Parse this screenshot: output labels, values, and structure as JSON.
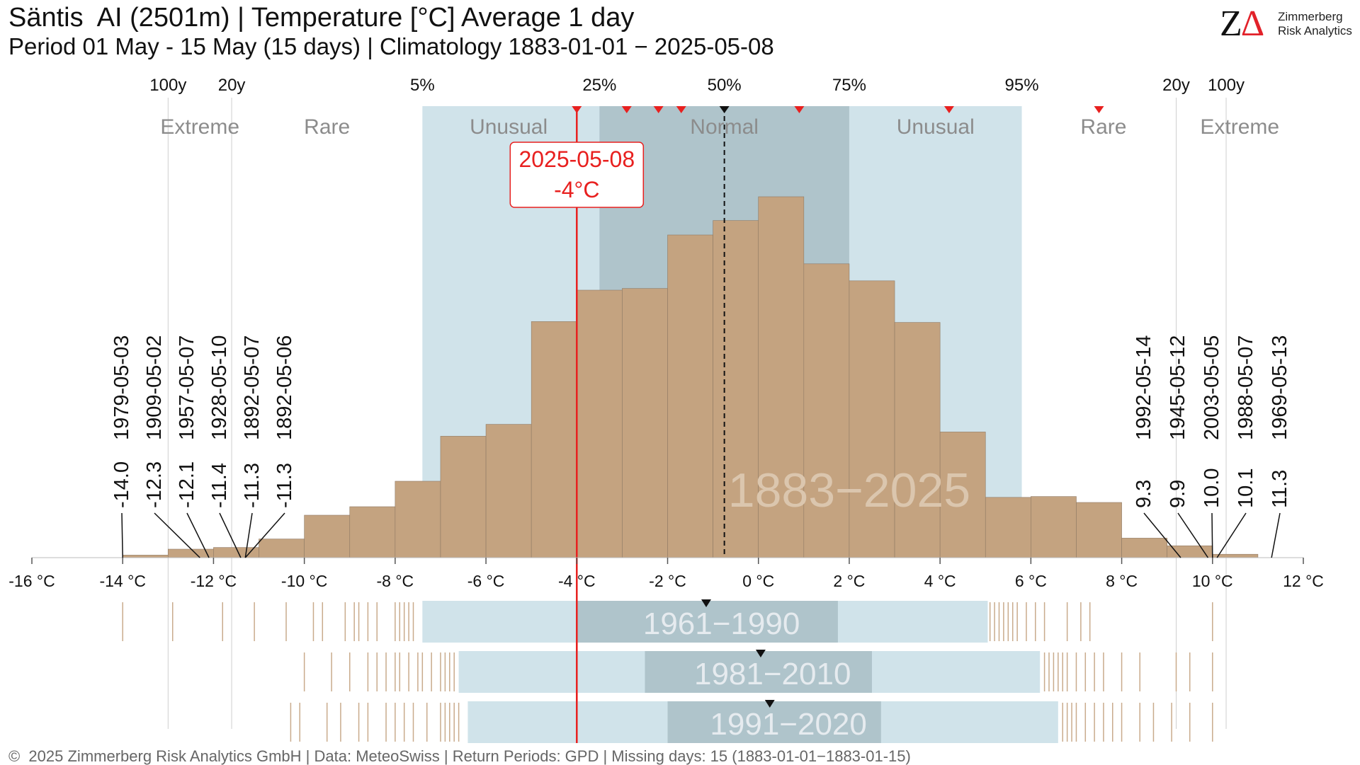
{
  "header": {
    "title": "Säntis  AI (2501m) | Temperature [°C] Average 1 day",
    "subtitle": "Period 01 May - 15 May (15 days) | Climatology 1883-01-01 − 2025-05-08"
  },
  "logo": {
    "symbol_z": "Z",
    "symbol_delta": "Δ",
    "line1": "Zimmerberg",
    "line2": "Risk Analytics"
  },
  "footer": "©  2025 Zimmerberg Risk Analytics GmbH | Data: MeteoSwiss | Return Periods: GPD | Missing days: 15 (1883-01-01−1883-01-15)",
  "colors": {
    "histogram": "#c4a380",
    "unusual_band": "#d0e3ea",
    "normal_band": "#afc4cb",
    "current": "#e8201f",
    "rug": "#c9ab8c",
    "category_text": "#8c8c8c",
    "period_text": "#e6ebef"
  },
  "chart_data": {
    "type": "bar",
    "xlim": [
      -16,
      12
    ],
    "x_unit": "°C",
    "x_ticks": [
      -16,
      -14,
      -12,
      -10,
      -8,
      -6,
      -4,
      -2,
      0,
      2,
      4,
      6,
      8,
      10,
      12
    ],
    "x_tick_labels": [
      "-16 °C",
      "-14 °C",
      "-12 °C",
      "-10 °C",
      "-8 °C",
      "-6 °C",
      "-4 °C",
      "-2 °C",
      "0 °C",
      "2 °C",
      "4 °C",
      "6 °C",
      "8 °C",
      "10 °C",
      "12 °C"
    ],
    "histogram": {
      "period_label": "1883−2025",
      "bins": [
        {
          "from": -14.0,
          "to": -13.0,
          "count": 3
        },
        {
          "from": -13.0,
          "to": -12.0,
          "count": 10
        },
        {
          "from": -12.0,
          "to": -11.0,
          "count": 12
        },
        {
          "from": -11.0,
          "to": -10.0,
          "count": 22
        },
        {
          "from": -10.0,
          "to": -9.0,
          "count": 50
        },
        {
          "from": -9.0,
          "to": -8.0,
          "count": 60
        },
        {
          "from": -8.0,
          "to": -7.0,
          "count": 90
        },
        {
          "from": -7.0,
          "to": -6.0,
          "count": 143
        },
        {
          "from": -6.0,
          "to": -5.0,
          "count": 157
        },
        {
          "from": -5.0,
          "to": -4.0,
          "count": 278
        },
        {
          "from": -4.0,
          "to": -3.0,
          "count": 315
        },
        {
          "from": -3.0,
          "to": -2.0,
          "count": 317
        },
        {
          "from": -2.0,
          "to": -1.0,
          "count": 380
        },
        {
          "from": -1.0,
          "to": 0.0,
          "count": 397
        },
        {
          "from": 0.0,
          "to": 1.0,
          "count": 425
        },
        {
          "from": 1.0,
          "to": 2.0,
          "count": 346
        },
        {
          "from": 2.0,
          "to": 3.0,
          "count": 326
        },
        {
          "from": 3.0,
          "to": 4.0,
          "count": 277
        },
        {
          "from": 4.0,
          "to": 5.0,
          "count": 148
        },
        {
          "from": 5.0,
          "to": 6.0,
          "count": 71
        },
        {
          "from": 6.0,
          "to": 7.0,
          "count": 72
        },
        {
          "from": 7.0,
          "to": 8.0,
          "count": 65
        },
        {
          "from": 8.0,
          "to": 9.0,
          "count": 23
        },
        {
          "from": 9.0,
          "to": 10.0,
          "count": 14
        },
        {
          "from": 10.0,
          "to": 11.0,
          "count": 4
        }
      ]
    },
    "percentiles": [
      {
        "label": "5%",
        "value": -7.4
      },
      {
        "label": "25%",
        "value": -3.5
      },
      {
        "label": "50%",
        "value": -0.75
      },
      {
        "label": "75%",
        "value": 2.0
      },
      {
        "label": "95%",
        "value": 5.8
      }
    ],
    "return_periods": [
      {
        "label": "100y",
        "value": -13.0
      },
      {
        "label": "20y",
        "value": -11.6
      },
      {
        "label": "20y",
        "value": 9.2
      },
      {
        "label": "100y",
        "value": 10.3
      }
    ],
    "categories": [
      {
        "label": "Extreme",
        "center": -12.3
      },
      {
        "label": "Rare",
        "center": -9.5
      },
      {
        "label": "Unusual",
        "center": -5.5
      },
      {
        "label": "Normal",
        "center": -0.75
      },
      {
        "label": "Unusual",
        "center": 3.9
      },
      {
        "label": "Rare",
        "center": 7.6
      },
      {
        "label": "Extreme",
        "center": 10.6
      }
    ],
    "current": {
      "date": "2025-05-08",
      "label": "-4°C",
      "value": -4.0
    },
    "median": -0.75,
    "recent_markers": {
      "red": [
        -4.0,
        -2.9,
        -2.2,
        -1.7,
        0.9,
        4.2,
        7.5
      ],
      "black": [
        -0.75
      ]
    },
    "cold_records": [
      {
        "date": "1979-05-03",
        "label": "-14.0",
        "value": -14.0
      },
      {
        "date": "1909-05-02",
        "label": "-12.3",
        "value": -12.3
      },
      {
        "date": "1957-05-07",
        "label": "-12.1",
        "value": -12.1
      },
      {
        "date": "1928-05-10",
        "label": "-11.4",
        "value": -11.4
      },
      {
        "date": "1892-05-07",
        "label": "-11.3",
        "value": -11.3
      },
      {
        "date": "1892-05-06",
        "label": "-11.3",
        "value": -11.3
      }
    ],
    "warm_records": [
      {
        "date": "1992-05-14",
        "label": "9.3",
        "value": 9.3
      },
      {
        "date": "1945-05-12",
        "label": "9.9",
        "value": 9.9
      },
      {
        "date": "2003-05-05",
        "label": "10.0",
        "value": 10.0
      },
      {
        "date": "1988-05-07",
        "label": "10.1",
        "value": 10.1
      },
      {
        "date": "1969-05-13",
        "label": "11.3",
        "value": 11.3
      }
    ],
    "reference_periods": [
      {
        "label": "1961−1990",
        "p5": -7.4,
        "p25": -4.0,
        "p75": 1.75,
        "p95": 5.05,
        "median": -1.15,
        "rug": [
          -14.0,
          -12.9,
          -11.8,
          -11.1,
          -10.4,
          -9.8,
          -9.6,
          -9.1,
          -8.9,
          -8.8,
          -8.6,
          -8.4,
          -8.0,
          -7.9,
          -7.8,
          -7.7,
          -7.6,
          5.1,
          5.2,
          5.3,
          5.4,
          5.5,
          5.6,
          5.7,
          5.9,
          6.1,
          6.3,
          6.8,
          7.1,
          7.3,
          10.0
        ]
      },
      {
        "label": "1981−2010",
        "p5": -6.6,
        "p25": -2.5,
        "p75": 2.5,
        "p95": 6.2,
        "median": 0.05,
        "rug": [
          -10.0,
          -9.4,
          -9.0,
          -8.6,
          -8.4,
          -8.2,
          -8.0,
          -7.9,
          -7.7,
          -7.5,
          -7.4,
          -7.2,
          -7.0,
          -6.9,
          -6.8,
          -6.7,
          6.3,
          6.4,
          6.5,
          6.6,
          6.7,
          6.8,
          7.0,
          7.2,
          7.4,
          7.6,
          8.0,
          8.4,
          9.2,
          9.5,
          10.0
        ]
      },
      {
        "label": "1991−2020",
        "p5": -6.4,
        "p25": -2.0,
        "p75": 2.7,
        "p95": 6.6,
        "median": 0.25,
        "rug": [
          -10.3,
          -10.1,
          -9.5,
          -9.2,
          -8.8,
          -8.6,
          -8.2,
          -8.0,
          -7.8,
          -7.6,
          -7.3,
          -7.0,
          -6.9,
          -6.8,
          -6.7,
          -6.6,
          6.7,
          6.8,
          6.9,
          7.0,
          7.2,
          7.4,
          7.6,
          7.8,
          8.0,
          8.4,
          8.7,
          9.1,
          9.5,
          10.0
        ]
      }
    ],
    "title": "",
    "xlabel": "",
    "ylabel": "",
    "grid": false,
    "legend": "none"
  }
}
